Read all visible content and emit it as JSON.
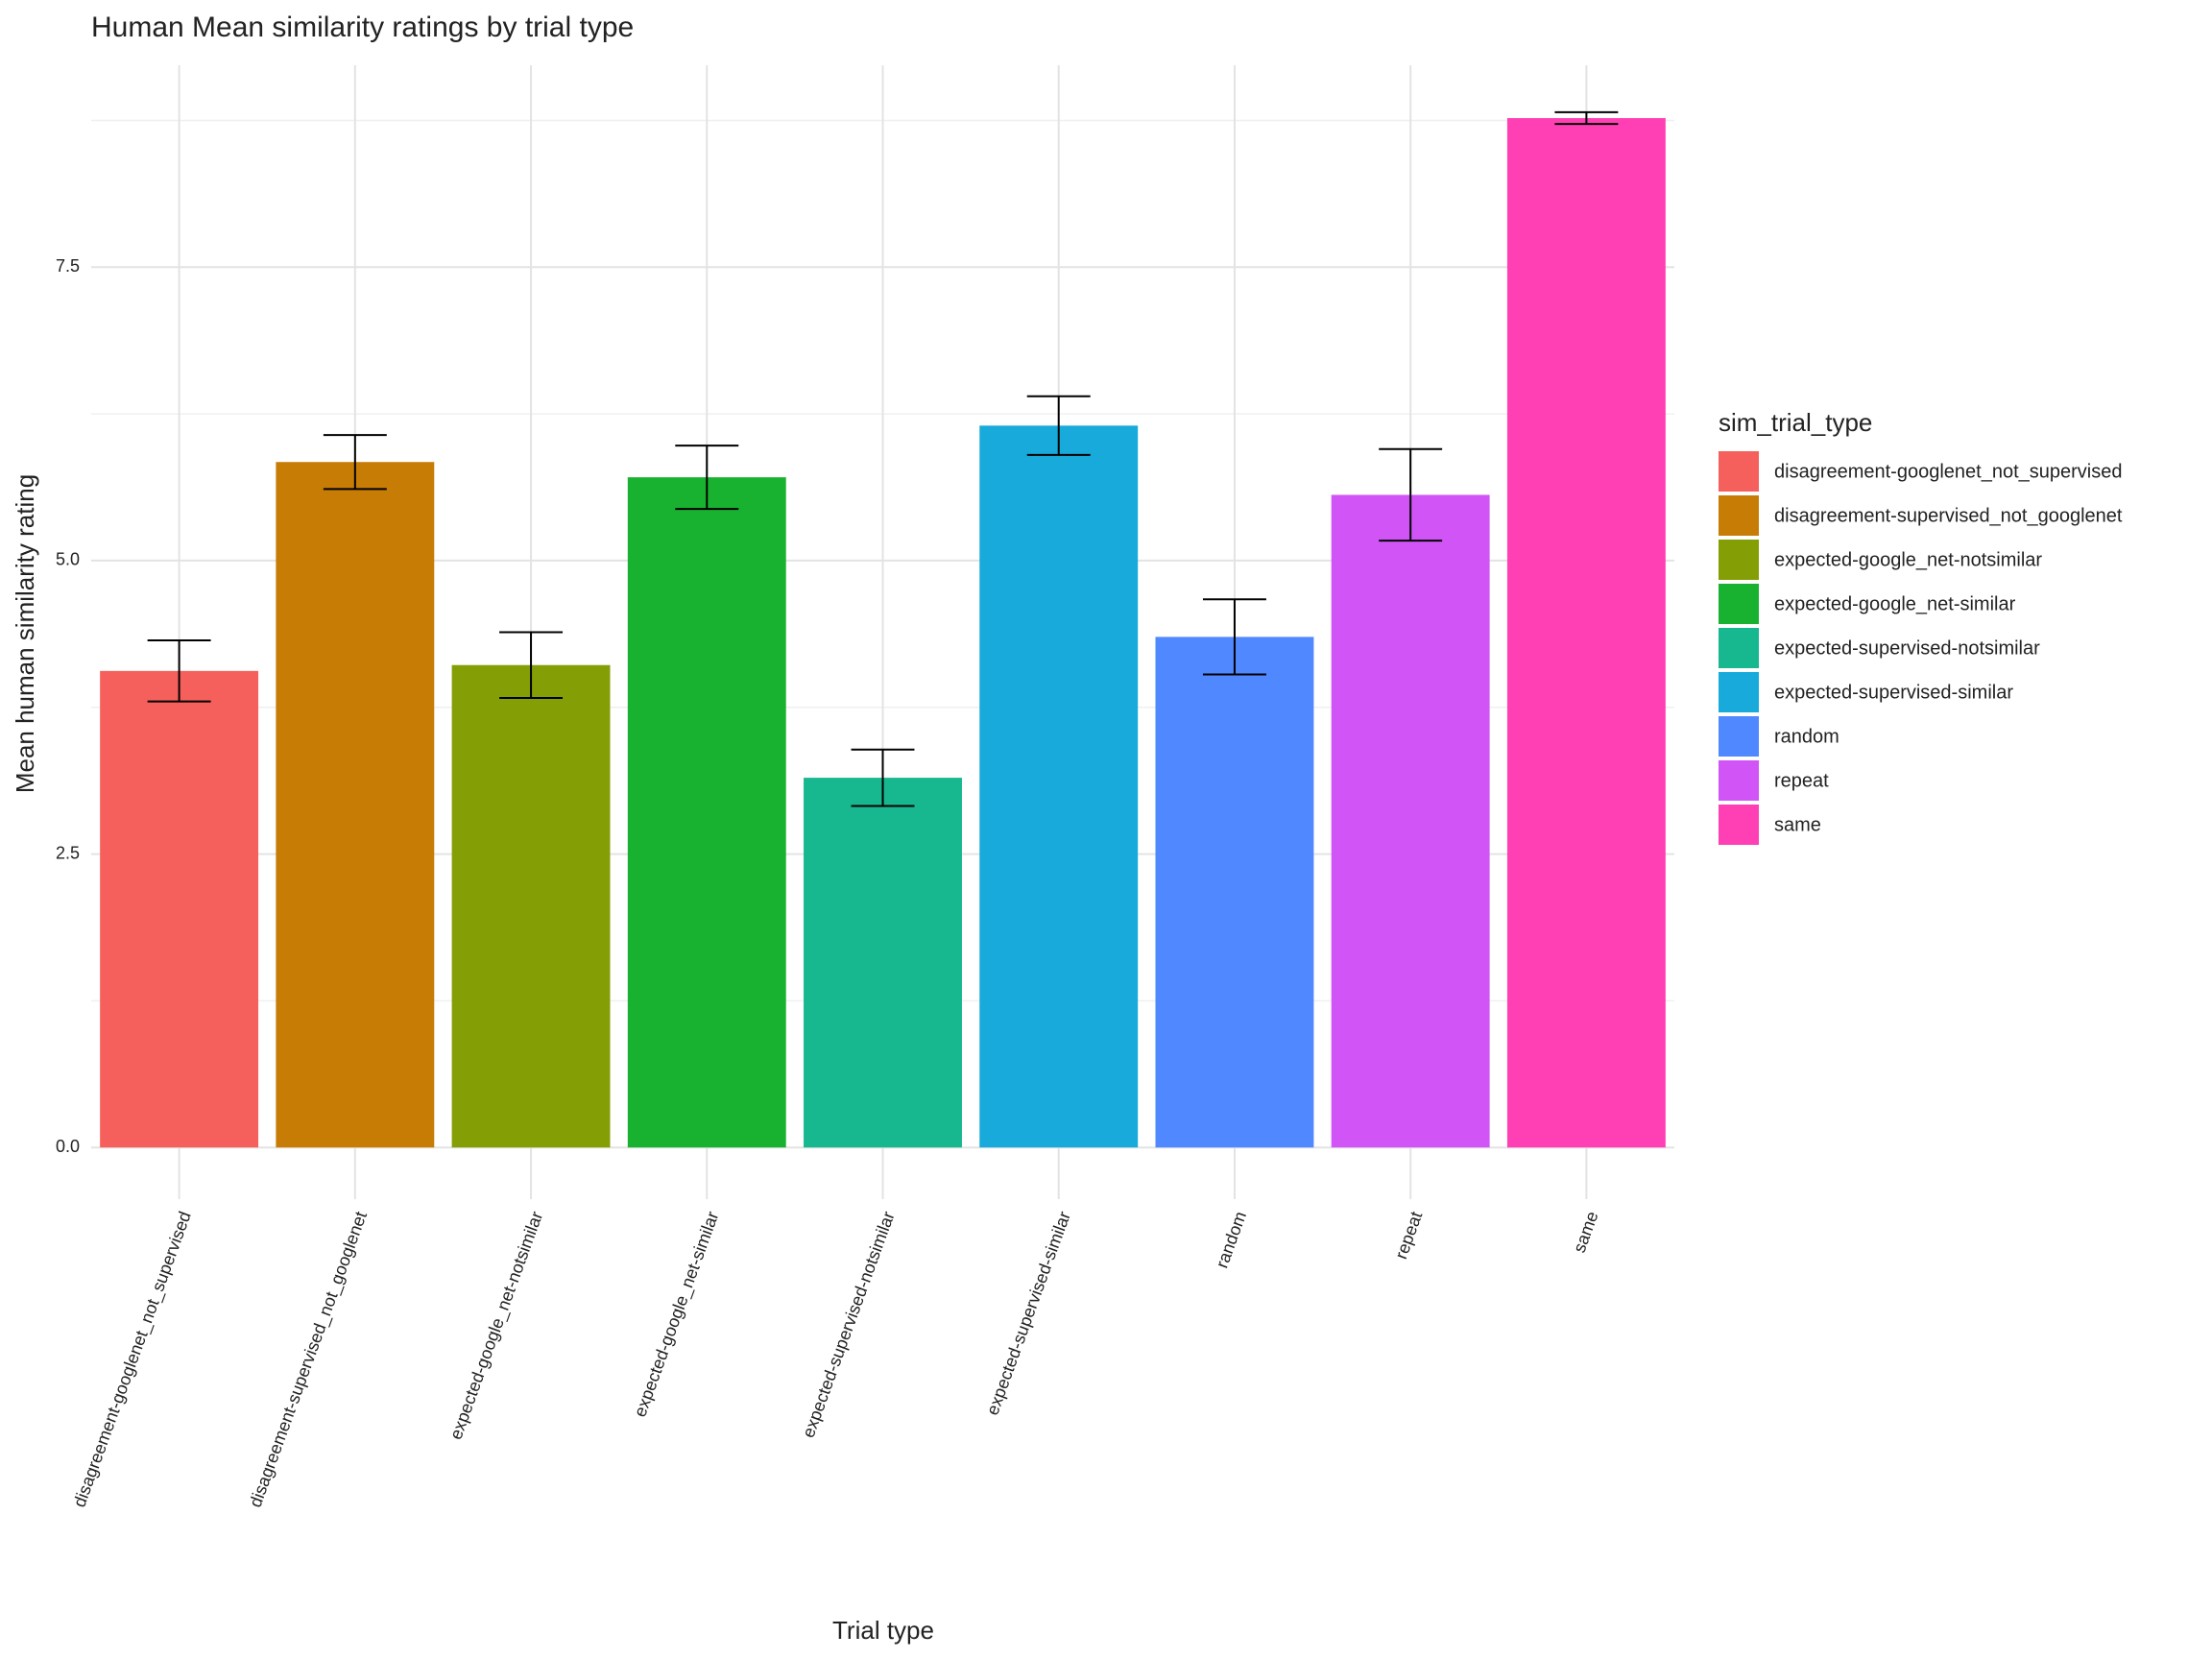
{
  "chart_data": {
    "type": "bar",
    "title": "Human Mean similarity ratings by trial type",
    "x_label": "Trial type",
    "y_label": "Mean human similarity rating",
    "legend_title": "sim_trial_type",
    "categories": [
      "disagreement-googlenet_not_supervised",
      "disagreement-supervised_not_googlenet",
      "expected-google_net-notsimilar",
      "expected-google_net-similar",
      "expected-supervised-notsimilar",
      "expected-supervised-similar",
      "random",
      "repeat",
      "same"
    ],
    "values": [
      4.06,
      5.84,
      4.11,
      5.71,
      3.15,
      6.15,
      4.35,
      5.56,
      8.77
    ],
    "errors": [
      0.26,
      0.23,
      0.28,
      0.27,
      0.24,
      0.25,
      0.32,
      0.39,
      0.05
    ],
    "colors": [
      "#F5605C",
      "#C77C06",
      "#839F05",
      "#19B230",
      "#17B78F",
      "#17AADB",
      "#5088FF",
      "#D154F7",
      "#FF40B4"
    ],
    "ylim": [
      -0.44,
      9.22
    ],
    "yticks": [
      {
        "value": 0,
        "label": "0.0"
      },
      {
        "value": 2.5,
        "label": "2.5"
      },
      {
        "value": 5,
        "label": "5.0"
      },
      {
        "value": 7.5,
        "label": "7.5"
      }
    ],
    "yminor": [
      1.25,
      3.75,
      6.25,
      8.75
    ],
    "grid": true,
    "legend_position": "right"
  }
}
